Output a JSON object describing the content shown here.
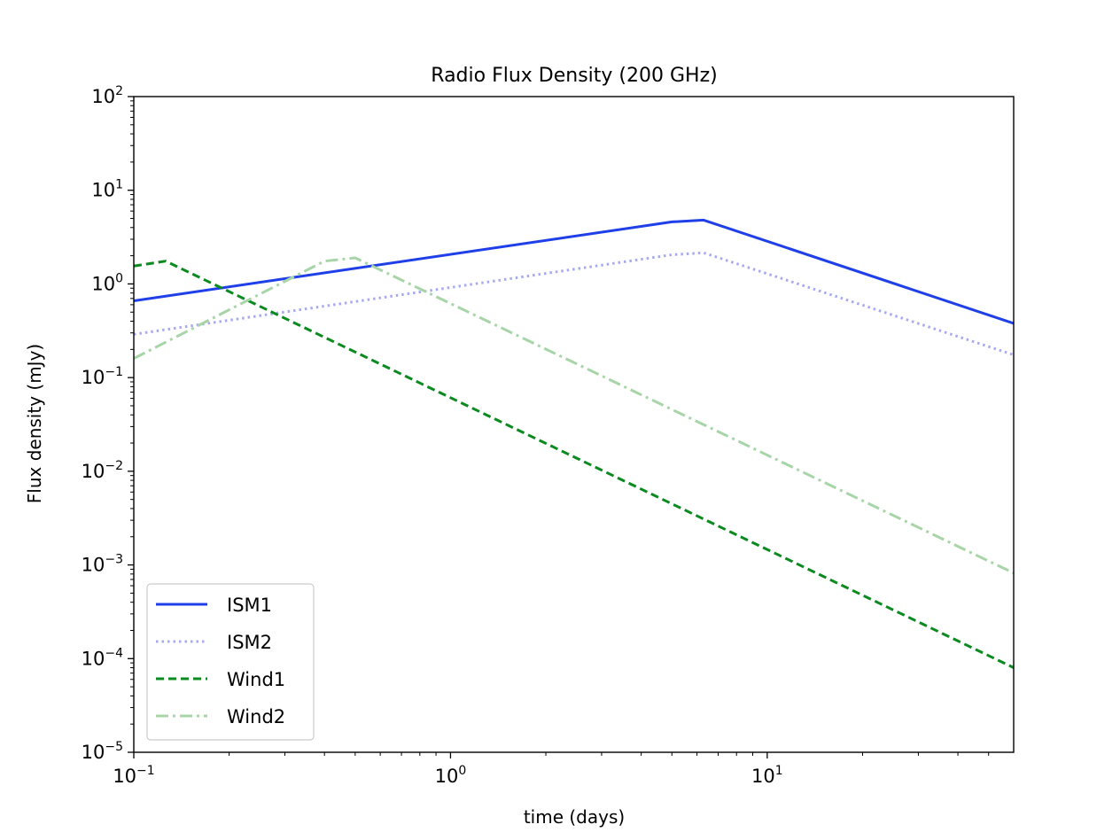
{
  "chart_data": {
    "type": "line",
    "title": "Radio Flux Density (200 GHz)",
    "xlabel": "time (days)",
    "ylabel": "Flux density (mJy)",
    "xscale": "log",
    "yscale": "log",
    "xlim": [
      0.1,
      60
    ],
    "ylim": [
      1e-05,
      100
    ],
    "grid": false,
    "legend_position": "lower-left",
    "x_ticks": [
      {
        "value": 0.1,
        "base": "10",
        "exp": "−1"
      },
      {
        "value": 1,
        "base": "10",
        "exp": "0"
      },
      {
        "value": 10,
        "base": "10",
        "exp": "1"
      }
    ],
    "y_ticks": [
      {
        "value": 100,
        "base": "10",
        "exp": "2"
      },
      {
        "value": 10,
        "base": "10",
        "exp": "1"
      },
      {
        "value": 1,
        "base": "10",
        "exp": "0"
      },
      {
        "value": 0.1,
        "base": "10",
        "exp": "−1"
      },
      {
        "value": 0.01,
        "base": "10",
        "exp": "−2"
      },
      {
        "value": 0.001,
        "base": "10",
        "exp": "−3"
      },
      {
        "value": 0.0001,
        "base": "10",
        "exp": "−4"
      },
      {
        "value": 1e-05,
        "base": "10",
        "exp": "−5"
      }
    ],
    "series": [
      {
        "name": "ISM1",
        "color": "#1f3fe8",
        "style": "solid",
        "points": [
          [
            0.1,
            0.66
          ],
          [
            5.0,
            4.6
          ],
          [
            6.3,
            4.8
          ],
          [
            60,
            0.38
          ]
        ]
      },
      {
        "name": "ISM2",
        "color": "#a7aaf2",
        "style": "dotted",
        "points": [
          [
            0.1,
            0.29
          ],
          [
            5.0,
            2.05
          ],
          [
            6.3,
            2.15
          ],
          [
            60,
            0.175
          ]
        ]
      },
      {
        "name": "Wind1",
        "color": "#0a8a1f",
        "style": "dashed",
        "points": [
          [
            0.1,
            1.55
          ],
          [
            0.126,
            1.75
          ],
          [
            60,
            8e-05
          ]
        ]
      },
      {
        "name": "Wind2",
        "color": "#a8d5a8",
        "style": "dashdot",
        "points": [
          [
            0.1,
            0.16
          ],
          [
            0.4,
            1.75
          ],
          [
            0.5,
            1.9
          ],
          [
            60,
            0.00082
          ]
        ]
      }
    ]
  }
}
